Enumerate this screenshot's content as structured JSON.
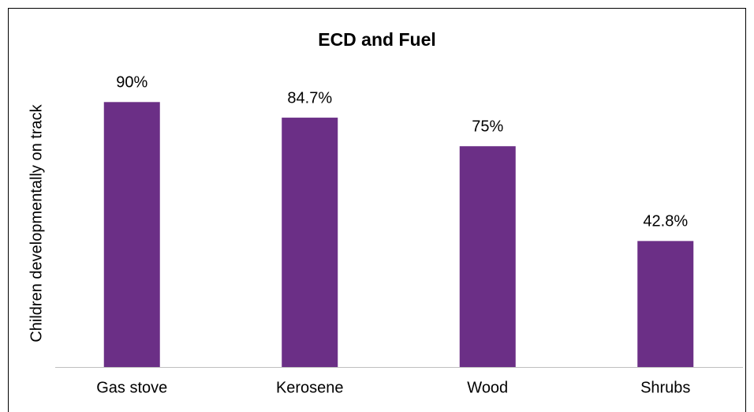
{
  "chart_data": {
    "type": "bar",
    "title": "ECD and Fuel",
    "y_label": "Children developmentally on track",
    "categories": [
      "Gas stove",
      "Kerosene",
      "Wood",
      "Shrubs"
    ],
    "values": [
      90,
      84.7,
      75,
      42.8
    ],
    "value_labels": [
      "90%",
      "84.7%",
      "75%",
      "42.8%"
    ],
    "color": "#6b2f86",
    "ylim": [
      0,
      100
    ]
  }
}
